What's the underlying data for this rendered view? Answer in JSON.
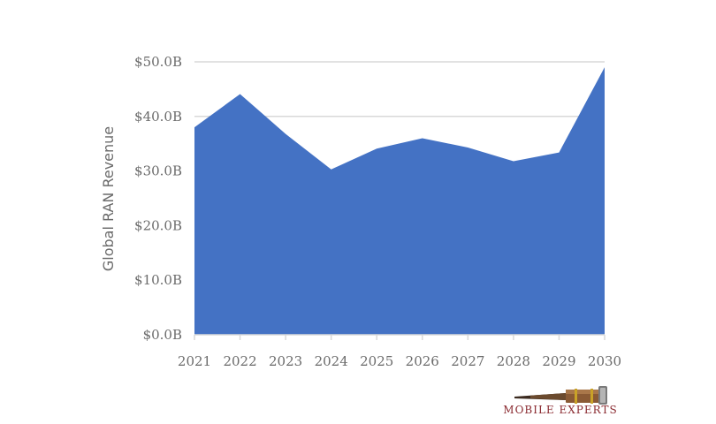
{
  "chart_data": {
    "type": "area",
    "title": "",
    "xlabel": "",
    "ylabel": "Global RAN Revenue",
    "x": [
      "2021",
      "2022",
      "2023",
      "2024",
      "2025",
      "2026",
      "2027",
      "2028",
      "2029",
      "2030"
    ],
    "series": [
      {
        "values": [
          38.0,
          44.1,
          36.8,
          30.3,
          34.1,
          36.0,
          34.3,
          31.8,
          33.4,
          49.0
        ]
      }
    ],
    "ylim": [
      0,
      50
    ],
    "yticks": [
      0,
      10,
      20,
      30,
      40,
      50
    ],
    "ytick_labels": [
      "$0.0B",
      "$10.0B",
      "$20.0B",
      "$30.0B",
      "$40.0B",
      "$50.0B"
    ],
    "grid": true,
    "legend": "none"
  },
  "colors": {
    "area_fill": "#4472c4",
    "grid": "#d9d9d9",
    "text": "#6b6b6b",
    "brand": "#8a2a30"
  },
  "logo": {
    "text": "MOBILE EXPERTS",
    "icon": "telescope-icon"
  }
}
